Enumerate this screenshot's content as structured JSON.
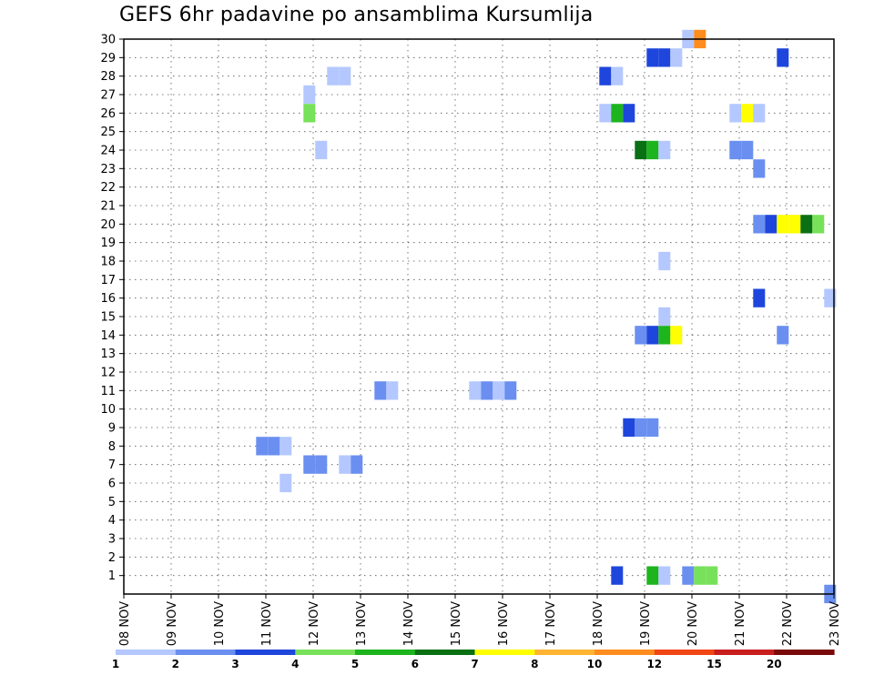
{
  "chart_data": {
    "type": "heatmap",
    "title": "GEFS 6hr padavine po ansamblima Kursumlija",
    "xlabel": "",
    "ylabel": "",
    "x_tick_labels": [
      "08 NOV",
      "09 NOV",
      "10 NOV",
      "11 NOV",
      "12 NOV",
      "13 NOV",
      "14 NOV",
      "15 NOV",
      "16 NOV",
      "17 NOV",
      "18 NOV",
      "19 NOV",
      "20 NOV",
      "21 NOV",
      "22 NOV",
      "23 NOV"
    ],
    "y_tick_labels": [
      "1",
      "2",
      "3",
      "4",
      "5",
      "6",
      "7",
      "8",
      "9",
      "10",
      "11",
      "12",
      "13",
      "14",
      "15",
      "16",
      "17",
      "18",
      "19",
      "20",
      "21",
      "22",
      "23",
      "24",
      "25",
      "26",
      "27",
      "28",
      "29",
      "30"
    ],
    "y_range": [
      0,
      30
    ],
    "x_range_days": [
      0,
      15
    ],
    "grid": true,
    "color_scale": {
      "labels": [
        "1",
        "2",
        "3",
        "4",
        "5",
        "6",
        "7",
        "8",
        "10",
        "12",
        "15",
        "20"
      ],
      "colors": [
        "#b4c8ff",
        "#6a8ff0",
        "#1e46dc",
        "#78e15a",
        "#1eb41e",
        "#0a7014",
        "#ffff00",
        "#ffb432",
        "#ff8c1e",
        "#f04614",
        "#c81e1e",
        "#7a0a0a"
      ]
    },
    "cells": [
      {
        "member": 30,
        "day": 11.92,
        "level": 1
      },
      {
        "member": 30,
        "day": 12.17,
        "level": 9
      },
      {
        "member": 29,
        "day": 11.17,
        "level": 3
      },
      {
        "member": 29,
        "day": 11.42,
        "level": 3
      },
      {
        "member": 29,
        "day": 11.67,
        "level": 1
      },
      {
        "member": 29,
        "day": 13.92,
        "level": 3
      },
      {
        "member": 28,
        "day": 4.42,
        "level": 1
      },
      {
        "member": 28,
        "day": 4.67,
        "level": 1
      },
      {
        "member": 28,
        "day": 10.17,
        "level": 3
      },
      {
        "member": 28,
        "day": 10.42,
        "level": 1
      },
      {
        "member": 27,
        "day": 3.92,
        "level": 1
      },
      {
        "member": 26,
        "day": 3.92,
        "level": 4
      },
      {
        "member": 26,
        "day": 10.17,
        "level": 1
      },
      {
        "member": 26,
        "day": 10.42,
        "level": 5
      },
      {
        "member": 26,
        "day": 10.67,
        "level": 3
      },
      {
        "member": 26,
        "day": 12.92,
        "level": 1
      },
      {
        "member": 26,
        "day": 13.17,
        "level": 7
      },
      {
        "member": 26,
        "day": 13.42,
        "level": 1
      },
      {
        "member": 24,
        "day": 4.17,
        "level": 1
      },
      {
        "member": 24,
        "day": 10.92,
        "level": 6
      },
      {
        "member": 24,
        "day": 11.17,
        "level": 5
      },
      {
        "member": 24,
        "day": 11.42,
        "level": 1
      },
      {
        "member": 24,
        "day": 12.92,
        "level": 2
      },
      {
        "member": 24,
        "day": 13.17,
        "level": 2
      },
      {
        "member": 23,
        "day": 13.42,
        "level": 2
      },
      {
        "member": 20,
        "day": 13.42,
        "level": 2
      },
      {
        "member": 20,
        "day": 13.67,
        "level": 3
      },
      {
        "member": 20,
        "day": 13.92,
        "level": 7
      },
      {
        "member": 20,
        "day": 14.17,
        "level": 7
      },
      {
        "member": 20,
        "day": 14.42,
        "level": 6
      },
      {
        "member": 20,
        "day": 14.67,
        "level": 4
      },
      {
        "member": 18,
        "day": 11.42,
        "level": 1
      },
      {
        "member": 16,
        "day": 13.42,
        "level": 3
      },
      {
        "member": 16,
        "day": 14.92,
        "level": 1
      },
      {
        "member": 15,
        "day": 11.42,
        "level": 1
      },
      {
        "member": 14,
        "day": 10.92,
        "level": 2
      },
      {
        "member": 14,
        "day": 11.17,
        "level": 3
      },
      {
        "member": 14,
        "day": 11.42,
        "level": 5
      },
      {
        "member": 14,
        "day": 11.67,
        "level": 7
      },
      {
        "member": 14,
        "day": 13.92,
        "level": 2
      },
      {
        "member": 11,
        "day": 5.42,
        "level": 2
      },
      {
        "member": 11,
        "day": 5.67,
        "level": 1
      },
      {
        "member": 11,
        "day": 7.42,
        "level": 1
      },
      {
        "member": 11,
        "day": 7.67,
        "level": 2
      },
      {
        "member": 11,
        "day": 7.92,
        "level": 1
      },
      {
        "member": 11,
        "day": 8.17,
        "level": 2
      },
      {
        "member": 9,
        "day": 10.67,
        "level": 3
      },
      {
        "member": 9,
        "day": 10.92,
        "level": 2
      },
      {
        "member": 9,
        "day": 11.17,
        "level": 2
      },
      {
        "member": 8,
        "day": 2.92,
        "level": 2
      },
      {
        "member": 8,
        "day": 3.17,
        "level": 2
      },
      {
        "member": 8,
        "day": 3.42,
        "level": 1
      },
      {
        "member": 7,
        "day": 3.92,
        "level": 2
      },
      {
        "member": 7,
        "day": 4.17,
        "level": 2
      },
      {
        "member": 7,
        "day": 4.67,
        "level": 1
      },
      {
        "member": 7,
        "day": 4.92,
        "level": 2
      },
      {
        "member": 6,
        "day": 3.42,
        "level": 1
      },
      {
        "member": 1,
        "day": 10.42,
        "level": 3
      },
      {
        "member": 1,
        "day": 11.17,
        "level": 5
      },
      {
        "member": 1,
        "day": 11.42,
        "level": 1
      },
      {
        "member": 1,
        "day": 11.92,
        "level": 2
      },
      {
        "member": 1,
        "day": 12.17,
        "level": 4
      },
      {
        "member": 1,
        "day": 12.42,
        "level": 4
      },
      {
        "member": 0,
        "day": 14.92,
        "level": 2
      }
    ]
  }
}
